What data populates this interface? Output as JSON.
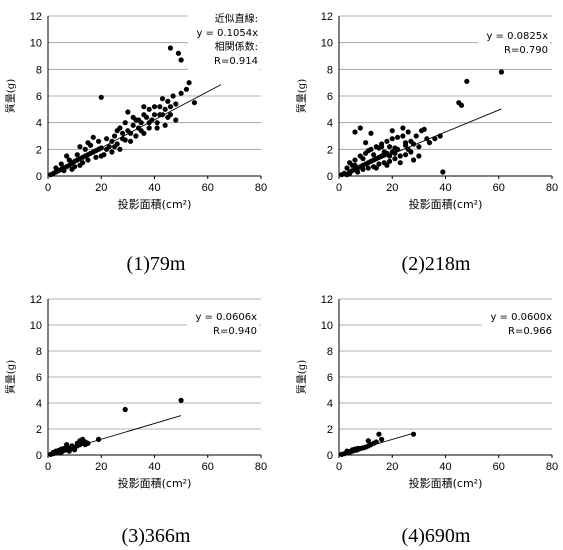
{
  "figure": {
    "panels": [
      {
        "caption": "(1)79m",
        "annotation_lines": [
          "近似直線:",
          "y = 0.1054x",
          "相関係数:",
          "R=0.914"
        ]
      },
      {
        "caption": "(2)218m",
        "annotation_lines": [
          "y = 0.0825x",
          "R=0.790"
        ]
      },
      {
        "caption": "(3)366m",
        "annotation_lines": [
          "y = 0.0606x",
          "R=0.940"
        ]
      },
      {
        "caption": "(4)690m",
        "annotation_lines": [
          "y = 0.0600x",
          "R=0.966"
        ]
      }
    ]
  },
  "chart_data": [
    {
      "type": "scatter",
      "xlabel": "投影面積(cm²)",
      "ylabel": "質量(g)",
      "xlim": [
        0,
        80
      ],
      "ylim": [
        0,
        12
      ],
      "xticks": [
        0,
        20,
        40,
        60,
        80
      ],
      "yticks": [
        0,
        2,
        4,
        6,
        8,
        10,
        12
      ],
      "grid": "horizontal",
      "marker_color": "#000000",
      "trendline": {
        "slope": 0.1054,
        "x_range": [
          0,
          65
        ]
      },
      "points": [
        [
          1,
          0.1
        ],
        [
          2,
          0.2
        ],
        [
          3,
          0.3
        ],
        [
          4,
          0.4
        ],
        [
          5,
          0.5
        ],
        [
          6,
          0.6
        ],
        [
          7,
          0.7
        ],
        [
          8,
          0.8
        ],
        [
          9,
          1.0
        ],
        [
          10,
          1.1
        ],
        [
          11,
          1.2
        ],
        [
          12,
          1.3
        ],
        [
          13,
          1.4
        ],
        [
          14,
          1.5
        ],
        [
          15,
          1.6
        ],
        [
          16,
          1.7
        ],
        [
          17,
          1.8
        ],
        [
          18,
          1.9
        ],
        [
          19,
          2.0
        ],
        [
          20,
          2.1
        ],
        [
          3,
          0.6
        ],
        [
          5,
          0.9
        ],
        [
          6,
          0.4
        ],
        [
          8,
          1.2
        ],
        [
          10,
          0.7
        ],
        [
          11,
          1.6
        ],
        [
          13,
          1.0
        ],
        [
          14,
          2.0
        ],
        [
          15,
          1.2
        ],
        [
          16,
          2.3
        ],
        [
          18,
          1.4
        ],
        [
          19,
          2.6
        ],
        [
          21,
          1.6
        ],
        [
          22,
          2.8
        ],
        [
          23,
          2.2
        ],
        [
          24,
          1.8
        ],
        [
          25,
          3.0
        ],
        [
          26,
          2.4
        ],
        [
          27,
          2.0
        ],
        [
          28,
          3.2
        ],
        [
          7,
          1.5
        ],
        [
          9,
          0.5
        ],
        [
          12,
          2.2
        ],
        [
          17,
          2.9
        ],
        [
          20,
          1.5
        ],
        [
          22,
          2.0
        ],
        [
          24,
          2.6
        ],
        [
          25,
          2.2
        ],
        [
          12,
          0.8
        ],
        [
          15,
          2.5
        ],
        [
          29,
          2.7
        ],
        [
          30,
          3.4
        ],
        [
          31,
          2.6
        ],
        [
          32,
          3.8
        ],
        [
          33,
          3.0
        ],
        [
          34,
          3.6
        ],
        [
          35,
          4.0
        ],
        [
          36,
          3.2
        ],
        [
          37,
          4.4
        ],
        [
          38,
          3.6
        ],
        [
          39,
          4.2
        ],
        [
          40,
          4.6
        ],
        [
          41,
          4.0
        ],
        [
          42,
          5.2
        ],
        [
          43,
          4.6
        ],
        [
          44,
          5.0
        ],
        [
          45,
          5.6
        ],
        [
          46,
          4.6
        ],
        [
          47,
          6.0
        ],
        [
          48,
          5.4
        ],
        [
          30,
          4.8
        ],
        [
          32,
          4.4
        ],
        [
          34,
          4.2
        ],
        [
          36,
          4.6
        ],
        [
          38,
          5.0
        ],
        [
          40,
          5.2
        ],
        [
          27,
          3.6
        ],
        [
          26,
          3.4
        ],
        [
          29,
          4.0
        ],
        [
          35,
          3.4
        ],
        [
          38,
          4.0
        ],
        [
          42,
          4.6
        ],
        [
          44,
          3.8
        ],
        [
          46,
          5.2
        ],
        [
          20,
          5.9
        ],
        [
          46,
          9.6
        ],
        [
          49,
          9.2
        ],
        [
          50,
          8.7
        ],
        [
          53,
          7.0
        ],
        [
          55,
          5.5
        ],
        [
          48,
          4.2
        ],
        [
          50,
          6.2
        ],
        [
          52,
          6.5
        ],
        [
          33,
          4.2
        ],
        [
          41,
          3.6
        ],
        [
          45,
          4.4
        ],
        [
          31,
          3.2
        ],
        [
          28,
          2.8
        ],
        [
          36,
          5.2
        ],
        [
          43,
          5.8
        ]
      ]
    },
    {
      "type": "scatter",
      "xlabel": "投影面積(cm²)",
      "ylabel": "質量(g)",
      "xlim": [
        0,
        80
      ],
      "ylim": [
        0,
        12
      ],
      "xticks": [
        0,
        20,
        40,
        60,
        80
      ],
      "yticks": [
        0,
        2,
        4,
        6,
        8,
        10,
        12
      ],
      "grid": "horizontal",
      "marker_color": "#000000",
      "trendline": {
        "slope": 0.0825,
        "x_range": [
          0,
          61
        ]
      },
      "points": [
        [
          1,
          0.1
        ],
        [
          2,
          0.2
        ],
        [
          3,
          0.1
        ],
        [
          4,
          0.3
        ],
        [
          5,
          0.4
        ],
        [
          6,
          0.5
        ],
        [
          7,
          0.6
        ],
        [
          8,
          0.7
        ],
        [
          9,
          0.8
        ],
        [
          10,
          0.9
        ],
        [
          11,
          1.0
        ],
        [
          12,
          1.1
        ],
        [
          13,
          1.2
        ],
        [
          14,
          1.3
        ],
        [
          15,
          1.4
        ],
        [
          16,
          1.5
        ],
        [
          17,
          1.6
        ],
        [
          18,
          1.7
        ],
        [
          19,
          1.5
        ],
        [
          20,
          1.8
        ],
        [
          3,
          0.6
        ],
        [
          4,
          1.0
        ],
        [
          5,
          0.8
        ],
        [
          6,
          1.2
        ],
        [
          7,
          0.3
        ],
        [
          8,
          1.5
        ],
        [
          9,
          0.5
        ],
        [
          10,
          1.7
        ],
        [
          11,
          0.6
        ],
        [
          12,
          2.0
        ],
        [
          13,
          0.7
        ],
        [
          14,
          2.2
        ],
        [
          15,
          0.9
        ],
        [
          16,
          2.4
        ],
        [
          17,
          1.0
        ],
        [
          18,
          2.6
        ],
        [
          19,
          1.1
        ],
        [
          20,
          2.8
        ],
        [
          21,
          1.3
        ],
        [
          22,
          2.9
        ],
        [
          23,
          1.5
        ],
        [
          24,
          3.0
        ],
        [
          25,
          1.6
        ],
        [
          26,
          2.0
        ],
        [
          27,
          1.8
        ],
        [
          28,
          2.4
        ],
        [
          30,
          2.2
        ],
        [
          32,
          3.5
        ],
        [
          33,
          2.8
        ],
        [
          34,
          2.5
        ],
        [
          6,
          3.3
        ],
        [
          8,
          3.6
        ],
        [
          10,
          2.5
        ],
        [
          12,
          3.2
        ],
        [
          14,
          0.6
        ],
        [
          16,
          2.2
        ],
        [
          18,
          0.8
        ],
        [
          20,
          3.4
        ],
        [
          22,
          2.0
        ],
        [
          24,
          3.6
        ],
        [
          21,
          2.1
        ],
        [
          23,
          1.0
        ],
        [
          25,
          2.5
        ],
        [
          26,
          3.3
        ],
        [
          28,
          1.2
        ],
        [
          29,
          3.0
        ],
        [
          30,
          1.5
        ],
        [
          31,
          3.4
        ],
        [
          36,
          2.8
        ],
        [
          38,
          3.0
        ],
        [
          39,
          0.3
        ],
        [
          45,
          5.5
        ],
        [
          46,
          5.3
        ],
        [
          48,
          7.1
        ],
        [
          61,
          7.8
        ],
        [
          4,
          0.2
        ],
        [
          6,
          0.8
        ],
        [
          9,
          1.3
        ],
        [
          11,
          1.9
        ],
        [
          13,
          1.6
        ],
        [
          15,
          2.1
        ],
        [
          17,
          1.8
        ],
        [
          19,
          2.2
        ],
        [
          21,
          1.7
        ],
        [
          25,
          2.3
        ],
        [
          27,
          2.6
        ]
      ]
    },
    {
      "type": "scatter",
      "xlabel": "投影面積(cm²)",
      "ylabel": "質量(g)",
      "xlim": [
        0,
        80
      ],
      "ylim": [
        0,
        12
      ],
      "xticks": [
        0,
        20,
        40,
        60,
        80
      ],
      "yticks": [
        0,
        2,
        4,
        6,
        8,
        10,
        12
      ],
      "grid": "horizontal",
      "marker_color": "#000000",
      "trendline": {
        "slope": 0.0606,
        "x_range": [
          0,
          50
        ]
      },
      "points": [
        [
          1,
          0.05
        ],
        [
          2,
          0.1
        ],
        [
          3,
          0.15
        ],
        [
          4,
          0.2
        ],
        [
          5,
          0.3
        ],
        [
          6,
          0.35
        ],
        [
          7,
          0.4
        ],
        [
          8,
          0.5
        ],
        [
          9,
          0.55
        ],
        [
          10,
          0.6
        ],
        [
          11,
          0.7
        ],
        [
          12,
          0.8
        ],
        [
          13,
          0.9
        ],
        [
          14,
          1.0
        ],
        [
          15,
          0.9
        ],
        [
          2,
          0.2
        ],
        [
          3,
          0.3
        ],
        [
          4,
          0.35
        ],
        [
          5,
          0.2
        ],
        [
          6,
          0.5
        ],
        [
          7,
          0.8
        ],
        [
          8,
          0.3
        ],
        [
          9,
          0.7
        ],
        [
          10,
          0.4
        ],
        [
          11,
          0.9
        ],
        [
          12,
          1.1
        ],
        [
          13,
          1.2
        ],
        [
          14,
          0.8
        ],
        [
          5,
          0.45
        ],
        [
          7,
          0.6
        ],
        [
          19,
          1.2
        ],
        [
          29,
          3.5
        ],
        [
          50,
          4.2
        ]
      ]
    },
    {
      "type": "scatter",
      "xlabel": "投影面積(cm²)",
      "ylabel": "質量(g)",
      "xlim": [
        0,
        80
      ],
      "ylim": [
        0,
        12
      ],
      "xticks": [
        0,
        20,
        40,
        60,
        80
      ],
      "yticks": [
        0,
        2,
        4,
        6,
        8,
        10,
        12
      ],
      "grid": "horizontal",
      "marker_color": "#000000",
      "trendline": {
        "slope": 0.06,
        "x_range": [
          0,
          28
        ]
      },
      "points": [
        [
          1,
          0.05
        ],
        [
          2,
          0.1
        ],
        [
          3,
          0.15
        ],
        [
          4,
          0.2
        ],
        [
          5,
          0.3
        ],
        [
          6,
          0.35
        ],
        [
          7,
          0.4
        ],
        [
          8,
          0.5
        ],
        [
          9,
          0.55
        ],
        [
          10,
          0.6
        ],
        [
          11,
          0.7
        ],
        [
          12,
          0.8
        ],
        [
          13,
          0.9
        ],
        [
          3,
          0.3
        ],
        [
          4,
          0.25
        ],
        [
          5,
          0.4
        ],
        [
          6,
          0.45
        ],
        [
          7,
          0.5
        ],
        [
          11,
          1.1
        ],
        [
          14,
          1.0
        ],
        [
          15,
          1.6
        ],
        [
          16,
          1.2
        ],
        [
          28,
          1.6
        ]
      ]
    }
  ]
}
